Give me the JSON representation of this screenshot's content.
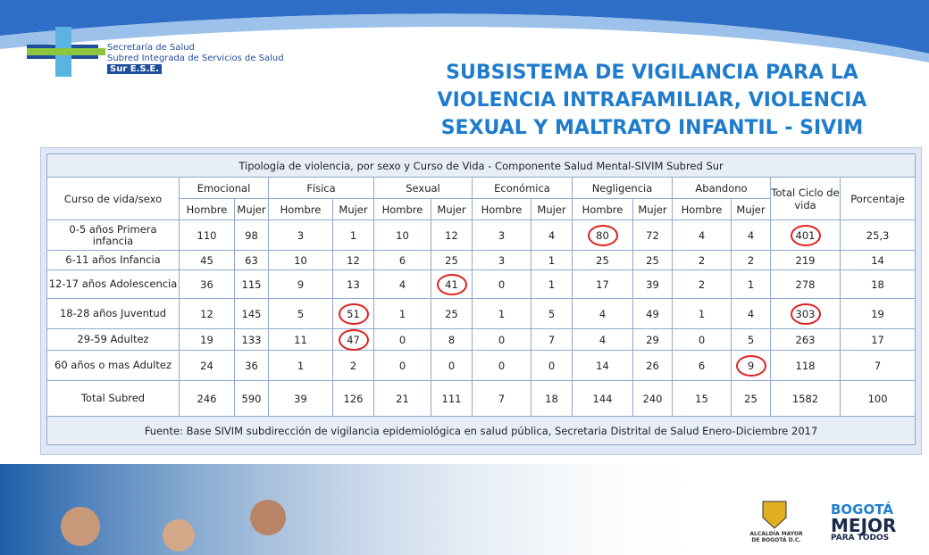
{
  "header": {
    "org_line1": "Secretaría de Salud",
    "org_line2": "Subred Integrada de Servicios de Salud",
    "org_line3": "Sur E.S.E.",
    "title": "SUBSISTEMA DE VIGILANCIA PARA LA VIOLENCIA INTRAFAMILIAR, VIOLENCIA SEXUAL Y MALTRATO INFANTIL - SIVIM"
  },
  "table": {
    "caption": "Tipología  de violencia, por sexo y Curso de Vida - Componente Salud Mental-SIVIM Subred Sur",
    "row_header": "Curso de vida/sexo",
    "groups": [
      "Emocional",
      "Física",
      "Sexual",
      "Económica",
      "Negligencia",
      "Abandono"
    ],
    "subheaders": [
      "Hombre",
      "Mujer"
    ],
    "total_header": "Total Ciclo de vida",
    "pct_header": "Porcentaje",
    "rows": [
      [
        "0-5 años Primera infancia",
        "110",
        "98",
        "3",
        "1",
        "10",
        "12",
        "3",
        "4",
        "80",
        "72",
        "4",
        "4",
        "401",
        "25,3"
      ],
      [
        "6-11 años Infancia",
        "45",
        "63",
        "10",
        "12",
        "6",
        "25",
        "3",
        "1",
        "25",
        "25",
        "2",
        "2",
        "219",
        "14"
      ],
      [
        "12-17 años Adolescencia",
        "36",
        "115",
        "9",
        "13",
        "4",
        "41",
        "0",
        "1",
        "17",
        "39",
        "2",
        "1",
        "278",
        "18"
      ],
      [
        "18-28 años Juventud",
        "12",
        "145",
        "5",
        "51",
        "1",
        "25",
        "1",
        "5",
        "4",
        "49",
        "1",
        "4",
        "303",
        "19"
      ],
      [
        "29-59 Adultez",
        "19",
        "133",
        "11",
        "47",
        "0",
        "8",
        "0",
        "7",
        "4",
        "29",
        "0",
        "5",
        "263",
        "17"
      ],
      [
        "60 años o mas Adultez",
        "24",
        "36",
        "1",
        "2",
        "0",
        "0",
        "0",
        "0",
        "14",
        "26",
        "6",
        "9",
        "118",
        "7"
      ],
      [
        "Total Subred",
        "246",
        "590",
        "39",
        "126",
        "21",
        "111",
        "7",
        "18",
        "144",
        "240",
        "15",
        "25",
        "1582",
        "100"
      ]
    ],
    "source": "Fuente: Base  SIVIM subdirección de vigilancia epidemiológica en salud pública, Secretaria Distrital de Salud Enero-Diciembre 2017"
  },
  "footer": {
    "alcaldia": "ALCALDÍA MAYOR DE BOGOTÁ D.C.",
    "brand1": "BOGOTÁ",
    "brand2": "MEJOR",
    "brand3": "PARA TODOS"
  }
}
